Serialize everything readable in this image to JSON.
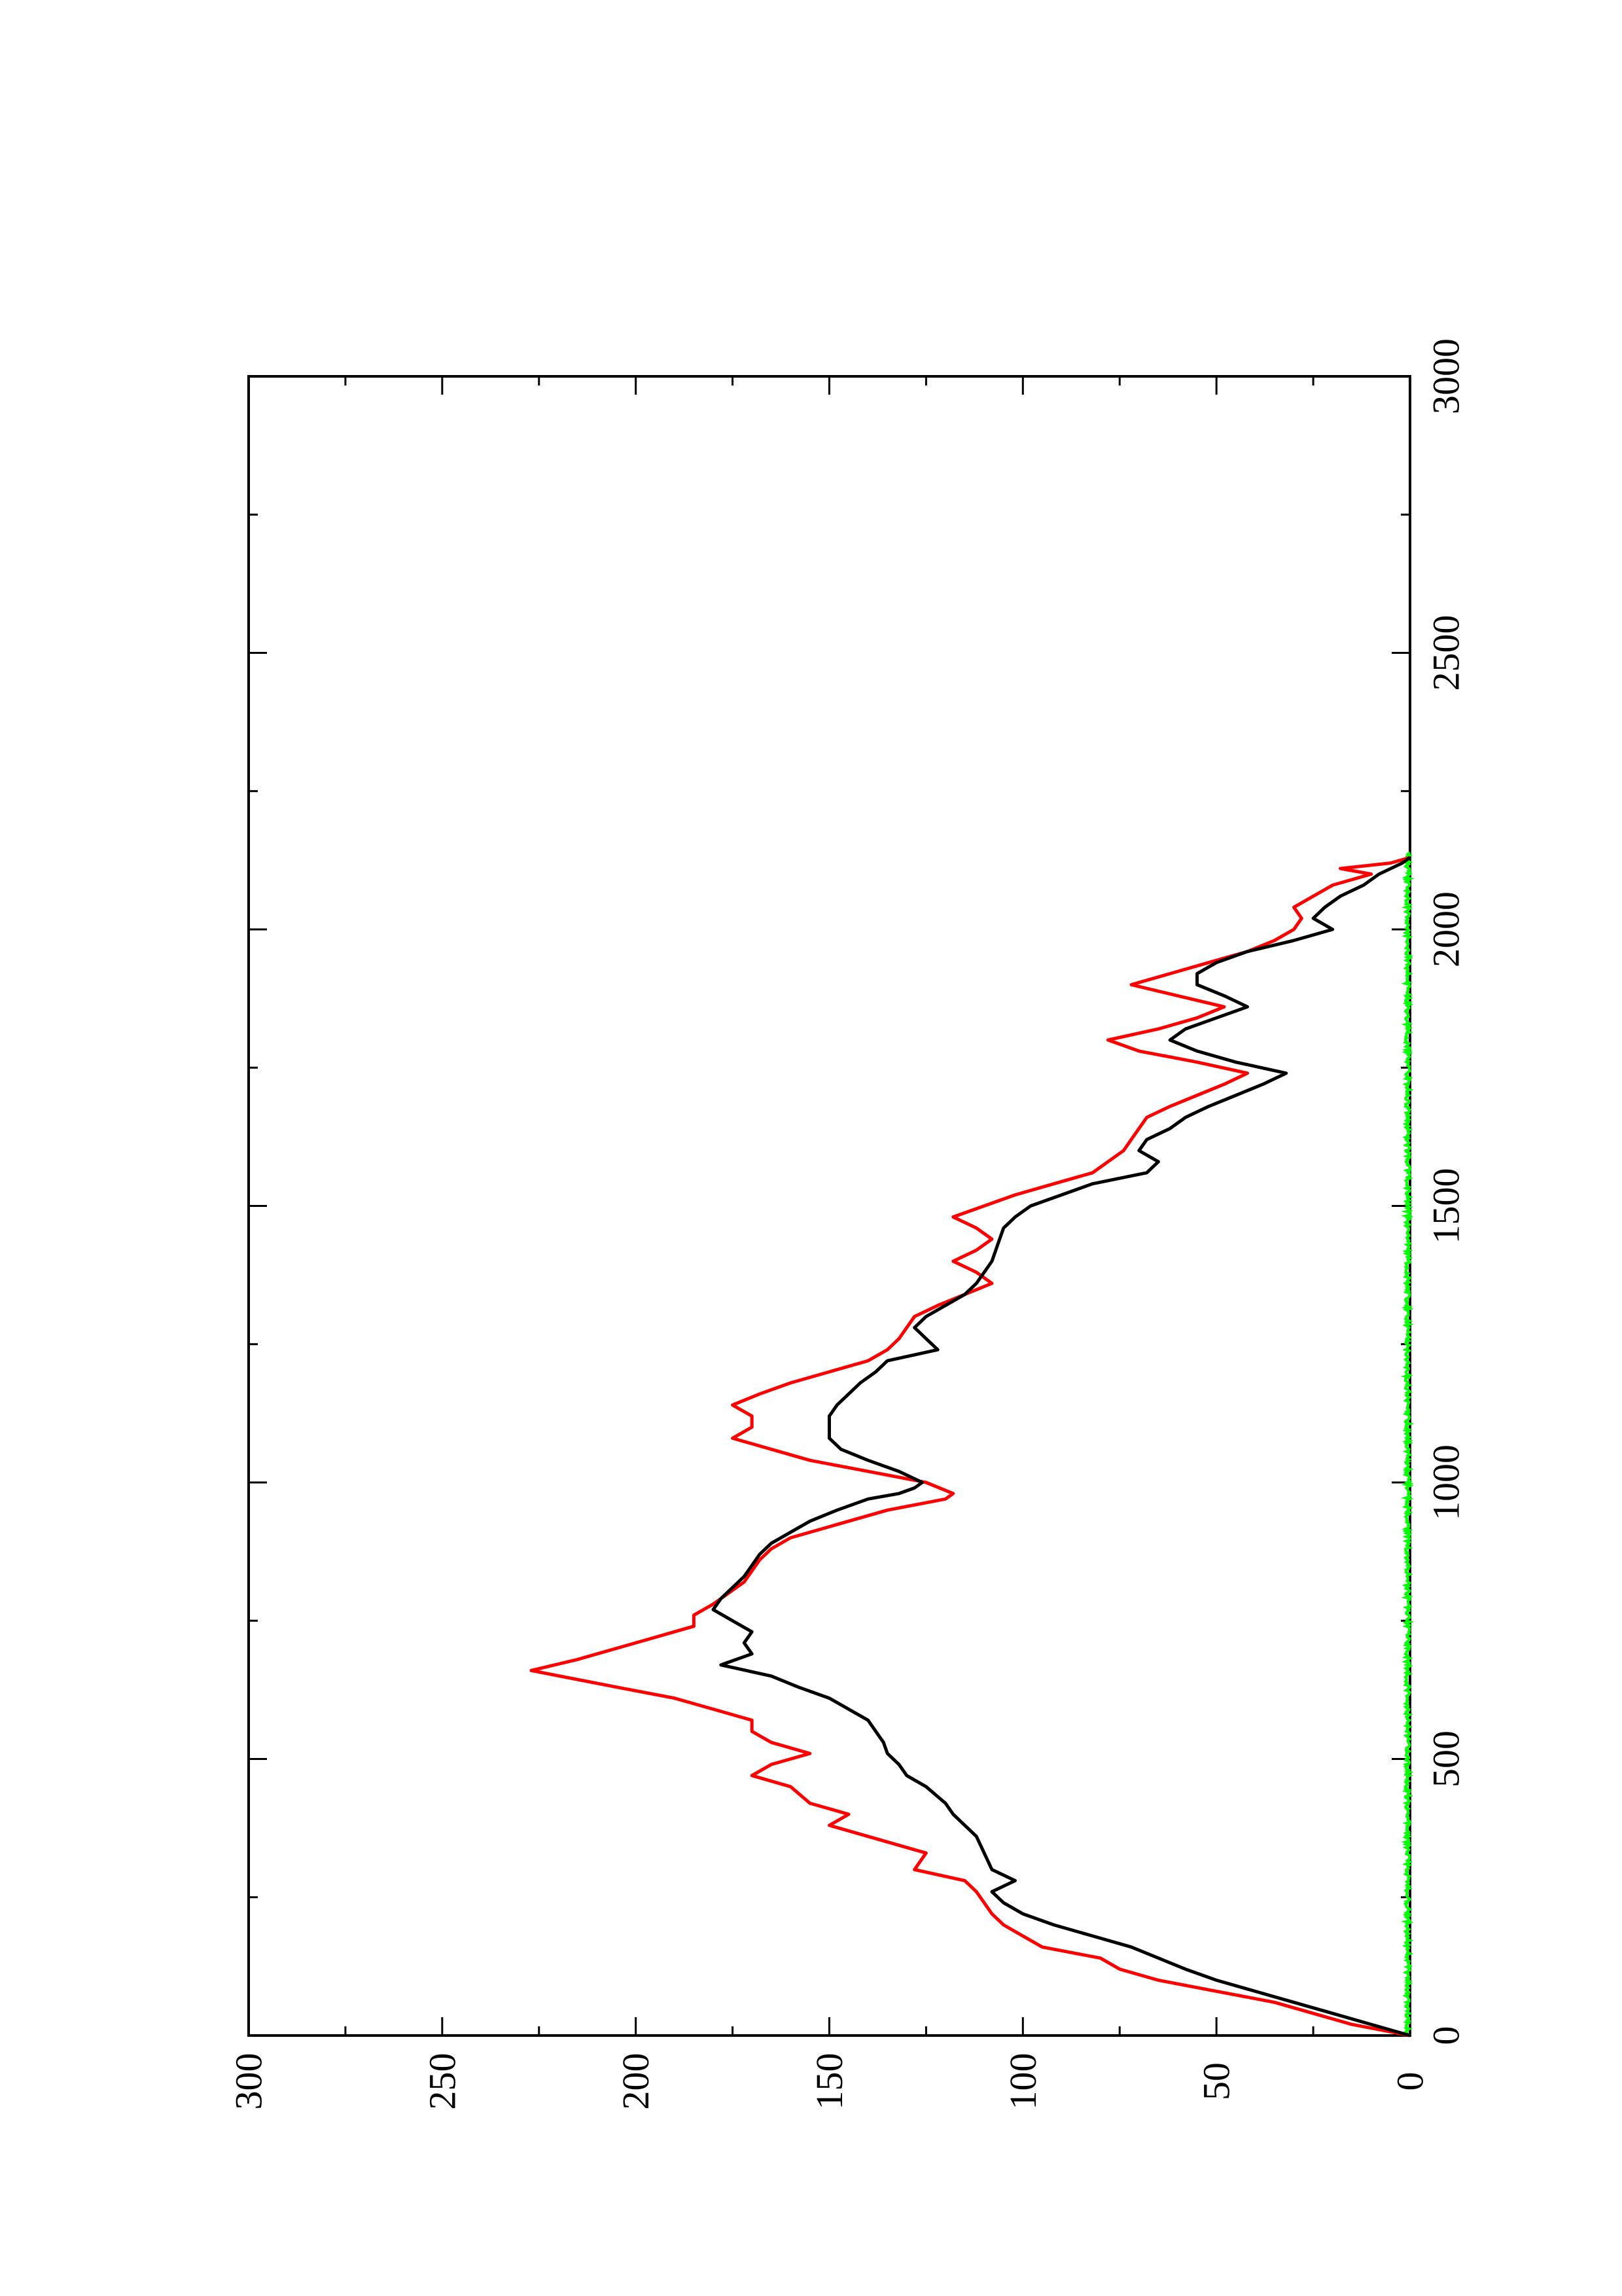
{
  "chart_data": {
    "type": "line",
    "title": "",
    "xlabel": "",
    "ylabel": "",
    "orientation": "rotated-90-ccw",
    "xlim": [
      0,
      3000
    ],
    "ylim": [
      0,
      300
    ],
    "x_ticks": [
      0,
      500,
      1000,
      1500,
      2000,
      2500,
      3000
    ],
    "y_ticks": [
      0,
      50,
      100,
      150,
      200,
      250,
      300
    ],
    "x_minor_step": 250,
    "y_minor_step": 25,
    "grid": false,
    "legend": "none",
    "series": [
      {
        "color": "#ff0000",
        "points": [
          [
            0,
            0
          ],
          [
            20,
            15
          ],
          [
            40,
            25
          ],
          [
            60,
            35
          ],
          [
            80,
            50
          ],
          [
            100,
            65
          ],
          [
            120,
            75
          ],
          [
            140,
            80
          ],
          [
            160,
            95
          ],
          [
            180,
            100
          ],
          [
            200,
            105
          ],
          [
            220,
            108
          ],
          [
            240,
            110
          ],
          [
            260,
            112
          ],
          [
            280,
            115
          ],
          [
            300,
            128
          ],
          [
            330,
            125
          ],
          [
            360,
            140
          ],
          [
            380,
            150
          ],
          [
            400,
            145
          ],
          [
            420,
            155
          ],
          [
            450,
            160
          ],
          [
            470,
            170
          ],
          [
            490,
            165
          ],
          [
            510,
            155
          ],
          [
            530,
            165
          ],
          [
            550,
            170
          ],
          [
            570,
            170
          ],
          [
            590,
            180
          ],
          [
            610,
            190
          ],
          [
            630,
            205
          ],
          [
            660,
            227
          ],
          [
            680,
            215
          ],
          [
            700,
            205
          ],
          [
            720,
            195
          ],
          [
            740,
            185
          ],
          [
            760,
            185
          ],
          [
            780,
            180
          ],
          [
            800,
            176
          ],
          [
            820,
            172
          ],
          [
            840,
            170
          ],
          [
            860,
            168
          ],
          [
            880,
            165
          ],
          [
            900,
            160
          ],
          [
            920,
            150
          ],
          [
            950,
            135
          ],
          [
            970,
            120
          ],
          [
            980,
            118
          ],
          [
            1000,
            125
          ],
          [
            1020,
            140
          ],
          [
            1040,
            155
          ],
          [
            1060,
            165
          ],
          [
            1080,
            175
          ],
          [
            1100,
            170
          ],
          [
            1120,
            170
          ],
          [
            1140,
            175
          ],
          [
            1160,
            168
          ],
          [
            1180,
            160
          ],
          [
            1200,
            150
          ],
          [
            1220,
            140
          ],
          [
            1240,
            135
          ],
          [
            1260,
            132
          ],
          [
            1280,
            130
          ],
          [
            1300,
            128
          ],
          [
            1320,
            122
          ],
          [
            1340,
            115
          ],
          [
            1360,
            108
          ],
          [
            1380,
            112
          ],
          [
            1400,
            118
          ],
          [
            1420,
            112
          ],
          [
            1440,
            108
          ],
          [
            1460,
            112
          ],
          [
            1480,
            118
          ],
          [
            1500,
            110
          ],
          [
            1520,
            102
          ],
          [
            1540,
            92
          ],
          [
            1560,
            82
          ],
          [
            1580,
            78
          ],
          [
            1600,
            74
          ],
          [
            1620,
            72
          ],
          [
            1640,
            70
          ],
          [
            1660,
            68
          ],
          [
            1680,
            62
          ],
          [
            1700,
            55
          ],
          [
            1720,
            48
          ],
          [
            1740,
            42
          ],
          [
            1760,
            55
          ],
          [
            1780,
            70
          ],
          [
            1800,
            78
          ],
          [
            1820,
            65
          ],
          [
            1840,
            55
          ],
          [
            1860,
            48
          ],
          [
            1880,
            60
          ],
          [
            1900,
            72
          ],
          [
            1920,
            62
          ],
          [
            1940,
            52
          ],
          [
            1960,
            42
          ],
          [
            1980,
            35
          ],
          [
            2000,
            30
          ],
          [
            2020,
            28
          ],
          [
            2040,
            30
          ],
          [
            2060,
            25
          ],
          [
            2080,
            20
          ],
          [
            2100,
            10
          ],
          [
            2110,
            18
          ],
          [
            2120,
            5
          ],
          [
            2130,
            0
          ]
        ]
      },
      {
        "color": "#000000",
        "points": [
          [
            0,
            0
          ],
          [
            20,
            10
          ],
          [
            40,
            20
          ],
          [
            60,
            30
          ],
          [
            80,
            40
          ],
          [
            100,
            50
          ],
          [
            120,
            58
          ],
          [
            140,
            65
          ],
          [
            160,
            72
          ],
          [
            180,
            82
          ],
          [
            200,
            92
          ],
          [
            220,
            100
          ],
          [
            240,
            105
          ],
          [
            260,
            108
          ],
          [
            280,
            102
          ],
          [
            300,
            108
          ],
          [
            330,
            110
          ],
          [
            360,
            112
          ],
          [
            380,
            115
          ],
          [
            400,
            118
          ],
          [
            420,
            120
          ],
          [
            450,
            125
          ],
          [
            470,
            130
          ],
          [
            490,
            132
          ],
          [
            510,
            135
          ],
          [
            530,
            136
          ],
          [
            550,
            138
          ],
          [
            570,
            140
          ],
          [
            590,
            145
          ],
          [
            610,
            150
          ],
          [
            630,
            158
          ],
          [
            650,
            165
          ],
          [
            670,
            178
          ],
          [
            690,
            170
          ],
          [
            710,
            172
          ],
          [
            730,
            170
          ],
          [
            750,
            175
          ],
          [
            770,
            180
          ],
          [
            790,
            178
          ],
          [
            810,
            175
          ],
          [
            830,
            172
          ],
          [
            850,
            170
          ],
          [
            870,
            168
          ],
          [
            890,
            165
          ],
          [
            910,
            160
          ],
          [
            930,
            155
          ],
          [
            950,
            148
          ],
          [
            970,
            140
          ],
          [
            980,
            132
          ],
          [
            990,
            128
          ],
          [
            1000,
            126
          ],
          [
            1020,
            132
          ],
          [
            1040,
            140
          ],
          [
            1060,
            147
          ],
          [
            1080,
            150
          ],
          [
            1100,
            150
          ],
          [
            1120,
            150
          ],
          [
            1140,
            148
          ],
          [
            1160,
            145
          ],
          [
            1180,
            142
          ],
          [
            1200,
            138
          ],
          [
            1220,
            135
          ],
          [
            1240,
            122
          ],
          [
            1260,
            125
          ],
          [
            1280,
            128
          ],
          [
            1300,
            125
          ],
          [
            1320,
            120
          ],
          [
            1340,
            115
          ],
          [
            1360,
            112
          ],
          [
            1380,
            110
          ],
          [
            1400,
            108
          ],
          [
            1420,
            107
          ],
          [
            1440,
            106
          ],
          [
            1460,
            105
          ],
          [
            1480,
            102
          ],
          [
            1500,
            98
          ],
          [
            1520,
            90
          ],
          [
            1540,
            82
          ],
          [
            1560,
            68
          ],
          [
            1580,
            65
          ],
          [
            1600,
            70
          ],
          [
            1620,
            68
          ],
          [
            1640,
            62
          ],
          [
            1660,
            58
          ],
          [
            1680,
            52
          ],
          [
            1700,
            45
          ],
          [
            1720,
            38
          ],
          [
            1740,
            32
          ],
          [
            1760,
            45
          ],
          [
            1780,
            55
          ],
          [
            1800,
            62
          ],
          [
            1820,
            58
          ],
          [
            1840,
            50
          ],
          [
            1860,
            42
          ],
          [
            1880,
            48
          ],
          [
            1900,
            55
          ],
          [
            1920,
            55
          ],
          [
            1940,
            50
          ],
          [
            1960,
            42
          ],
          [
            1980,
            30
          ],
          [
            1990,
            25
          ],
          [
            2000,
            20
          ],
          [
            2020,
            25
          ],
          [
            2040,
            22
          ],
          [
            2060,
            18
          ],
          [
            2080,
            12
          ],
          [
            2100,
            8
          ],
          [
            2120,
            2
          ],
          [
            2130,
            0
          ]
        ]
      },
      {
        "color": "#00ff00",
        "noise_amplitude": 1.2,
        "x_range": [
          0,
          2140
        ]
      }
    ]
  }
}
